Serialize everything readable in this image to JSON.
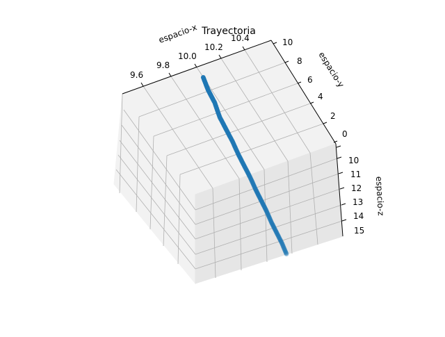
{
  "chart_data": {
    "type": "scatter",
    "projection": "3d",
    "title": "Trayectoria",
    "xlabel": "espacio-x",
    "ylabel": "espacio-y",
    "zlabel": "espacio-z",
    "xticks": [
      "9.6",
      "9.8",
      "10.0",
      "10.2",
      "10.4"
    ],
    "yticks": [
      "0",
      "2",
      "4",
      "6",
      "8",
      "10"
    ],
    "zticks": [
      "10",
      "11",
      "12",
      "13",
      "14",
      "15"
    ],
    "xlim": [
      9.5,
      10.5
    ],
    "ylim": [
      0,
      10
    ],
    "zlim": [
      10,
      15
    ],
    "grid": true,
    "series": [
      {
        "color": "#1f77b4",
        "x": [
          10.0,
          10.0,
          10.01,
          10.01,
          10.02,
          10.03,
          10.04,
          10.05,
          10.06,
          10.07,
          10.08,
          10.09,
          10.1,
          10.11,
          10.12,
          10.13
        ],
        "y": [
          9.0,
          8.3,
          7.6,
          6.9,
          6.2,
          5.5,
          4.9,
          4.3,
          3.7,
          3.1,
          2.6,
          2.1,
          1.6,
          1.1,
          0.6,
          0.2
        ],
        "z": [
          10.0,
          10.3,
          10.6,
          11.0,
          11.3,
          11.6,
          12.0,
          12.3,
          12.6,
          13.0,
          13.3,
          13.6,
          14.0,
          14.3,
          14.6,
          15.0
        ]
      }
    ]
  }
}
